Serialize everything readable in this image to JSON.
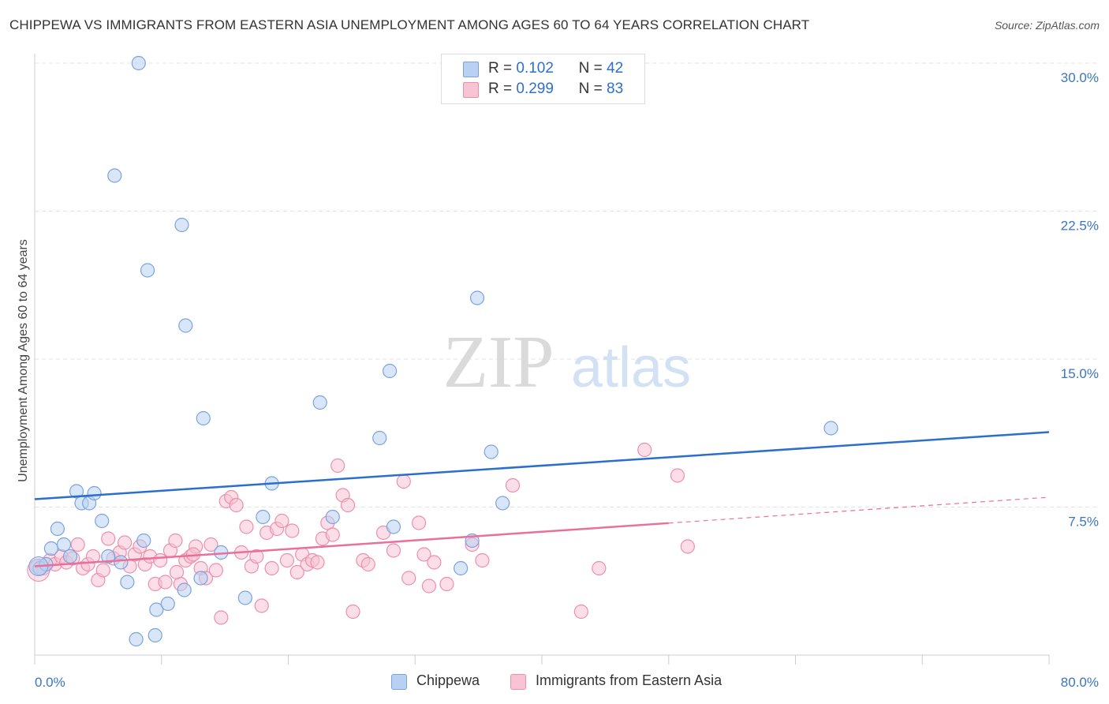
{
  "title": "CHIPPEWA VS IMMIGRANTS FROM EASTERN ASIA UNEMPLOYMENT AMONG AGES 60 TO 64 YEARS CORRELATION CHART",
  "source": "Source: ZipAtlas.com",
  "watermark": {
    "zip": "ZIP",
    "atlas": "atlas"
  },
  "legend": {
    "r_label": "R =",
    "n_label": "N =",
    "rows": [
      {
        "r": "0.102",
        "n": "42"
      },
      {
        "r": "0.299",
        "n": "83"
      }
    ]
  },
  "colors": {
    "chippewa_fill": "#b8d1f3",
    "chippewa_stroke": "#7aa3dc",
    "chippewa_line": "#2b6fcd",
    "asia_fill": "#f8c3d3",
    "asia_stroke": "#ec8fab",
    "asia_line": "#e8709a",
    "tick_label": "#3a75c4"
  },
  "chart_data": {
    "type": "scatter",
    "xlabel": "",
    "ylabel": "Unemployment Among Ages 60 to 64 years",
    "xlim": [
      0,
      80
    ],
    "ylim": [
      0,
      30
    ],
    "x_tick_labels": [
      "0.0%",
      "80.0%"
    ],
    "y_ticks": [
      7.5,
      15.0,
      22.5,
      30.0
    ],
    "y_tick_labels": [
      "7.5%",
      "15.0%",
      "22.5%",
      "30.0%"
    ],
    "grid": true,
    "series": [
      {
        "name": "Chippewa",
        "r": 0.102,
        "n": 42,
        "trend": {
          "x": [
            0,
            80
          ],
          "y": [
            7.9,
            11.3
          ],
          "dashed_from": null
        },
        "points": [
          [
            0.4,
            4.4
          ],
          [
            0.9,
            4.6
          ],
          [
            1.3,
            5.4
          ],
          [
            1.8,
            6.4
          ],
          [
            2.3,
            5.6
          ],
          [
            2.8,
            5.0
          ],
          [
            3.3,
            8.3
          ],
          [
            3.7,
            7.7
          ],
          [
            4.3,
            7.7
          ],
          [
            4.7,
            8.2
          ],
          [
            5.3,
            6.8
          ],
          [
            5.8,
            5.0
          ],
          [
            6.8,
            4.7
          ],
          [
            7.3,
            3.7
          ],
          [
            8.0,
            0.8
          ],
          [
            8.6,
            5.8
          ],
          [
            9.6,
            2.3
          ],
          [
            10.5,
            2.6
          ],
          [
            11.8,
            3.3
          ],
          [
            13.1,
            3.9
          ],
          [
            14.7,
            5.2
          ],
          [
            16.6,
            2.9
          ],
          [
            18.0,
            7.0
          ],
          [
            18.7,
            8.7
          ],
          [
            23.5,
            7.0
          ],
          [
            27.2,
            11.0
          ],
          [
            28.3,
            6.5
          ],
          [
            34.5,
            5.8
          ],
          [
            33.6,
            4.4
          ],
          [
            36.0,
            10.3
          ],
          [
            36.9,
            7.7
          ],
          [
            62.8,
            11.5
          ],
          [
            8.2,
            30.0
          ],
          [
            6.3,
            24.3
          ],
          [
            8.9,
            19.5
          ],
          [
            11.6,
            21.8
          ],
          [
            11.9,
            16.7
          ],
          [
            13.3,
            12.0
          ],
          [
            22.5,
            12.8
          ],
          [
            28.0,
            14.4
          ],
          [
            34.9,
            18.1
          ],
          [
            9.5,
            1.0
          ]
        ]
      },
      {
        "name": "Immigrants from Eastern Asia",
        "r": 0.299,
        "n": 83,
        "trend": {
          "x": [
            0,
            80
          ],
          "y": [
            4.5,
            8.0
          ],
          "dashed_from": 50
        },
        "points": [
          [
            0.2,
            4.5
          ],
          [
            0.7,
            4.4
          ],
          [
            1.2,
            4.8
          ],
          [
            1.6,
            4.6
          ],
          [
            2.1,
            5.0
          ],
          [
            2.5,
            4.7
          ],
          [
            3.0,
            4.9
          ],
          [
            3.4,
            5.6
          ],
          [
            3.8,
            4.4
          ],
          [
            4.2,
            4.6
          ],
          [
            4.6,
            5.0
          ],
          [
            5.0,
            3.8
          ],
          [
            5.4,
            4.3
          ],
          [
            5.8,
            5.9
          ],
          [
            6.2,
            4.9
          ],
          [
            6.7,
            5.2
          ],
          [
            7.1,
            5.7
          ],
          [
            7.5,
            4.5
          ],
          [
            7.9,
            5.1
          ],
          [
            8.3,
            5.5
          ],
          [
            8.7,
            4.6
          ],
          [
            9.1,
            5.0
          ],
          [
            9.5,
            3.6
          ],
          [
            9.9,
            4.8
          ],
          [
            10.3,
            3.7
          ],
          [
            10.7,
            5.3
          ],
          [
            11.1,
            5.8
          ],
          [
            11.5,
            3.6
          ],
          [
            11.9,
            4.8
          ],
          [
            12.3,
            5.0
          ],
          [
            12.7,
            5.5
          ],
          [
            13.1,
            4.4
          ],
          [
            13.5,
            3.9
          ],
          [
            13.9,
            5.6
          ],
          [
            14.3,
            4.3
          ],
          [
            14.7,
            1.9
          ],
          [
            15.1,
            7.8
          ],
          [
            15.5,
            8.0
          ],
          [
            15.9,
            7.6
          ],
          [
            16.3,
            5.2
          ],
          [
            16.7,
            6.5
          ],
          [
            17.1,
            4.5
          ],
          [
            17.5,
            5.0
          ],
          [
            17.9,
            2.5
          ],
          [
            18.3,
            6.2
          ],
          [
            18.7,
            4.4
          ],
          [
            19.1,
            6.4
          ],
          [
            19.5,
            6.8
          ],
          [
            19.9,
            4.8
          ],
          [
            20.3,
            6.3
          ],
          [
            20.7,
            4.2
          ],
          [
            21.1,
            5.1
          ],
          [
            21.5,
            4.6
          ],
          [
            21.9,
            4.8
          ],
          [
            22.3,
            4.7
          ],
          [
            22.7,
            5.9
          ],
          [
            23.1,
            6.7
          ],
          [
            23.5,
            6.1
          ],
          [
            23.9,
            9.6
          ],
          [
            24.3,
            8.1
          ],
          [
            24.7,
            7.6
          ],
          [
            25.1,
            2.2
          ],
          [
            25.9,
            4.8
          ],
          [
            26.3,
            4.6
          ],
          [
            27.5,
            6.2
          ],
          [
            28.3,
            5.3
          ],
          [
            29.1,
            8.8
          ],
          [
            29.5,
            3.9
          ],
          [
            30.3,
            6.7
          ],
          [
            30.7,
            5.1
          ],
          [
            31.1,
            3.5
          ],
          [
            31.5,
            4.7
          ],
          [
            32.5,
            3.6
          ],
          [
            34.5,
            5.6
          ],
          [
            35.3,
            4.8
          ],
          [
            37.7,
            8.6
          ],
          [
            43.1,
            2.2
          ],
          [
            44.5,
            4.4
          ],
          [
            48.1,
            10.4
          ],
          [
            50.7,
            9.1
          ],
          [
            51.5,
            5.5
          ],
          [
            12.5,
            5.1
          ],
          [
            11.2,
            4.2
          ]
        ]
      }
    ]
  }
}
